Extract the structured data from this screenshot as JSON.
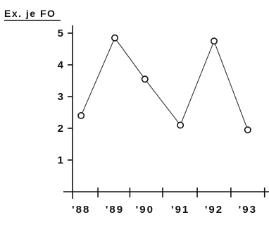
{
  "chart_data": {
    "type": "line",
    "title": "",
    "ylabel": "Ex. je FO",
    "xlabel": "",
    "categories": [
      "'88",
      "'89",
      "'90",
      "'91",
      "'92",
      "'93"
    ],
    "x": [
      1988.3,
      1989.25,
      1990.1,
      1991.1,
      1992.05,
      1993.0
    ],
    "y_ticks": [
      1,
      2,
      3,
      4,
      5
    ],
    "ylim": [
      0,
      5.8
    ],
    "xlim": [
      1987.8,
      1993.6
    ],
    "series": [
      {
        "values": [
          2.4,
          4.85,
          3.55,
          2.1,
          4.75,
          1.95
        ]
      }
    ],
    "marker": "open-circle",
    "grid": false,
    "line_color": "#333333"
  }
}
